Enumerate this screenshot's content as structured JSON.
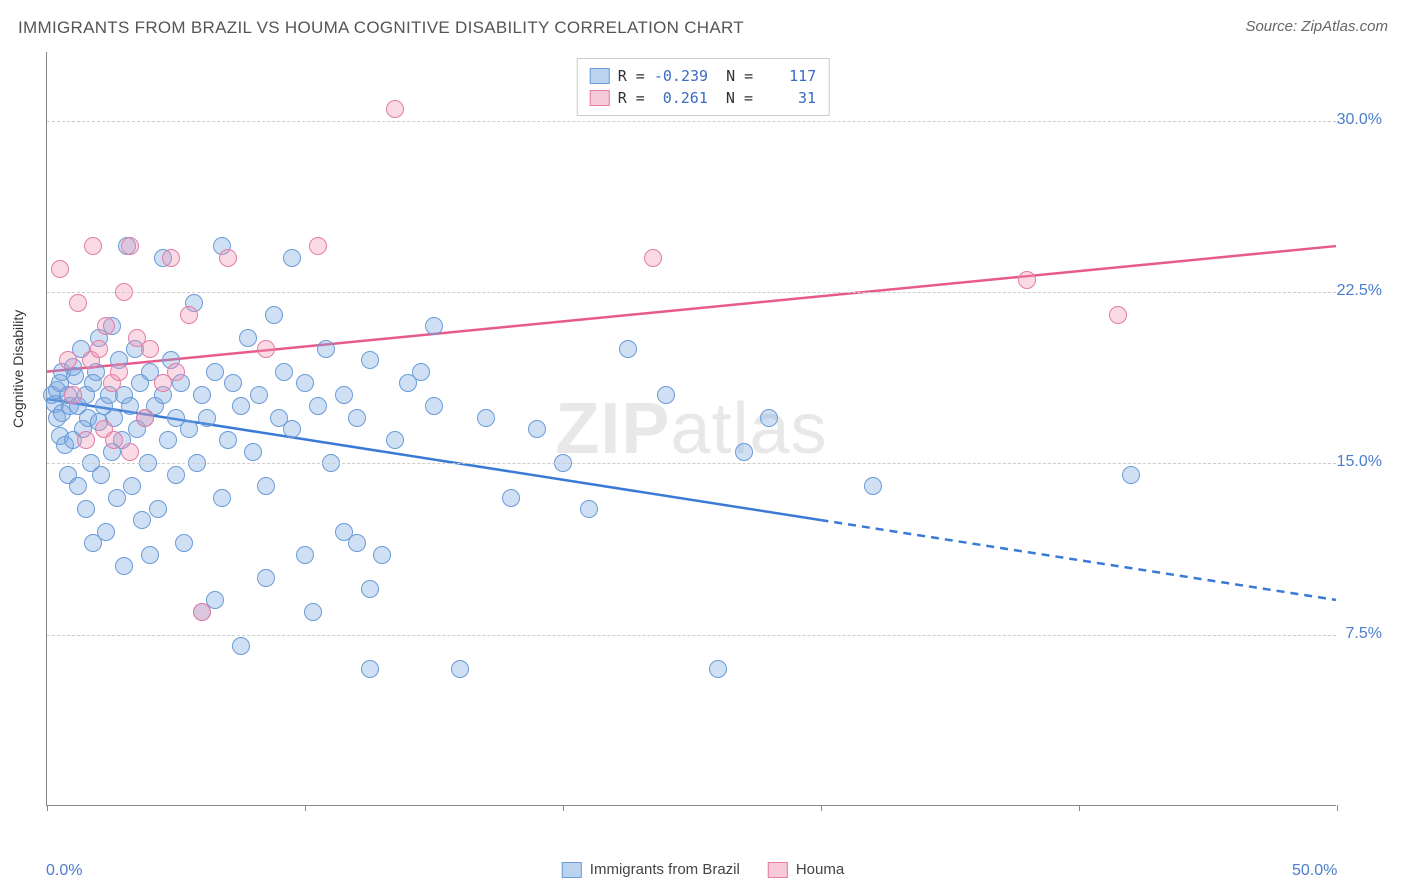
{
  "header": {
    "title": "IMMIGRANTS FROM BRAZIL VS HOUMA COGNITIVE DISABILITY CORRELATION CHART",
    "source": "Source: ZipAtlas.com"
  },
  "watermark": {
    "bold": "ZIP",
    "rest": "atlas"
  },
  "chart": {
    "type": "scatter",
    "ylabel": "Cognitive Disability",
    "xlim": [
      0.0,
      50.0
    ],
    "ylim": [
      0.0,
      33.0
    ],
    "background_color": "#ffffff",
    "grid_color": "#cccccc",
    "axis_color": "#888888",
    "label_color": "#4a7ecc",
    "grid_y": [
      7.5,
      15.0,
      22.5,
      30.0
    ],
    "y_tick_labels": [
      "7.5%",
      "15.0%",
      "22.5%",
      "30.0%"
    ],
    "x_tick_positions": [
      0,
      10,
      20,
      30,
      40,
      50
    ],
    "x_tick_labels": [
      "0.0%",
      "50.0%"
    ],
    "x_tick_label_positions": [
      0,
      50
    ],
    "point_radius": 9,
    "series": [
      {
        "name": "Immigrants from Brazil",
        "color_fill": "rgba(120,167,224,0.35)",
        "color_stroke": "#6b9bd8",
        "class": "pt-blue",
        "R": "-0.239",
        "N": "117",
        "reg_line": {
          "color": "#3a7ad6",
          "width": 2.5,
          "start": [
            0,
            17.8
          ],
          "solid_end": [
            30,
            12.5
          ],
          "dashed_end": [
            50,
            9.0
          ]
        },
        "points": [
          [
            0.2,
            18.0
          ],
          [
            0.3,
            17.6
          ],
          [
            0.4,
            18.2
          ],
          [
            0.4,
            17.0
          ],
          [
            0.5,
            18.5
          ],
          [
            0.5,
            16.2
          ],
          [
            0.6,
            19.0
          ],
          [
            0.6,
            17.2
          ],
          [
            0.7,
            15.8
          ],
          [
            0.8,
            18.0
          ],
          [
            0.8,
            14.5
          ],
          [
            0.9,
            17.5
          ],
          [
            1.0,
            16.0
          ],
          [
            1.0,
            19.2
          ],
          [
            1.1,
            18.8
          ],
          [
            1.2,
            14.0
          ],
          [
            1.2,
            17.5
          ],
          [
            1.3,
            20.0
          ],
          [
            1.4,
            16.5
          ],
          [
            1.5,
            18.0
          ],
          [
            1.5,
            13.0
          ],
          [
            1.6,
            17.0
          ],
          [
            1.7,
            15.0
          ],
          [
            1.8,
            18.5
          ],
          [
            1.8,
            11.5
          ],
          [
            1.9,
            19.0
          ],
          [
            2.0,
            16.8
          ],
          [
            2.0,
            20.5
          ],
          [
            2.1,
            14.5
          ],
          [
            2.2,
            17.5
          ],
          [
            2.3,
            12.0
          ],
          [
            2.4,
            18.0
          ],
          [
            2.5,
            15.5
          ],
          [
            2.5,
            21.0
          ],
          [
            2.6,
            17.0
          ],
          [
            2.7,
            13.5
          ],
          [
            2.8,
            19.5
          ],
          [
            2.9,
            16.0
          ],
          [
            3.0,
            18.0
          ],
          [
            3.0,
            10.5
          ],
          [
            3.1,
            24.5
          ],
          [
            3.2,
            17.5
          ],
          [
            3.3,
            14.0
          ],
          [
            3.4,
            20.0
          ],
          [
            3.5,
            16.5
          ],
          [
            3.6,
            18.5
          ],
          [
            3.7,
            12.5
          ],
          [
            3.8,
            17.0
          ],
          [
            3.9,
            15.0
          ],
          [
            4.0,
            19.0
          ],
          [
            4.0,
            11.0
          ],
          [
            4.2,
            17.5
          ],
          [
            4.3,
            13.0
          ],
          [
            4.5,
            18.0
          ],
          [
            4.5,
            24.0
          ],
          [
            4.7,
            16.0
          ],
          [
            4.8,
            19.5
          ],
          [
            5.0,
            14.5
          ],
          [
            5.0,
            17.0
          ],
          [
            5.2,
            18.5
          ],
          [
            5.3,
            11.5
          ],
          [
            5.5,
            16.5
          ],
          [
            5.7,
            22.0
          ],
          [
            5.8,
            15.0
          ],
          [
            6.0,
            18.0
          ],
          [
            6.0,
            8.5
          ],
          [
            6.2,
            17.0
          ],
          [
            6.5,
            19.0
          ],
          [
            6.5,
            9.0
          ],
          [
            6.8,
            13.5
          ],
          [
            6.8,
            24.5
          ],
          [
            7.0,
            16.0
          ],
          [
            7.2,
            18.5
          ],
          [
            7.5,
            17.5
          ],
          [
            7.5,
            7.0
          ],
          [
            7.8,
            20.5
          ],
          [
            8.0,
            15.5
          ],
          [
            8.2,
            18.0
          ],
          [
            8.5,
            14.0
          ],
          [
            8.5,
            10.0
          ],
          [
            8.8,
            21.5
          ],
          [
            9.0,
            17.0
          ],
          [
            9.2,
            19.0
          ],
          [
            9.5,
            16.5
          ],
          [
            9.5,
            24.0
          ],
          [
            10.0,
            18.5
          ],
          [
            10.0,
            11.0
          ],
          [
            10.3,
            8.5
          ],
          [
            10.5,
            17.5
          ],
          [
            10.8,
            20.0
          ],
          [
            11.0,
            15.0
          ],
          [
            11.5,
            18.0
          ],
          [
            11.5,
            12.0
          ],
          [
            12.0,
            17.0
          ],
          [
            12.0,
            11.5
          ],
          [
            12.5,
            9.5
          ],
          [
            12.5,
            19.5
          ],
          [
            12.5,
            6.0
          ],
          [
            13.0,
            11.0
          ],
          [
            13.5,
            16.0
          ],
          [
            14.0,
            18.5
          ],
          [
            14.5,
            19.0
          ],
          [
            15.0,
            17.5
          ],
          [
            15.0,
            21.0
          ],
          [
            16.0,
            6.0
          ],
          [
            17.0,
            17.0
          ],
          [
            18.0,
            13.5
          ],
          [
            19.0,
            16.5
          ],
          [
            20.0,
            15.0
          ],
          [
            21.0,
            13.0
          ],
          [
            22.5,
            20.0
          ],
          [
            24.0,
            18.0
          ],
          [
            26.0,
            6.0
          ],
          [
            27.0,
            15.5
          ],
          [
            28.0,
            17.0
          ],
          [
            32.0,
            14.0
          ],
          [
            42.0,
            14.5
          ]
        ]
      },
      {
        "name": "Houma",
        "color_fill": "rgba(240,150,180,0.35)",
        "color_stroke": "#e37da6",
        "class": "pt-pink",
        "R": "0.261",
        "N": "31",
        "reg_line": {
          "color": "#e85a8c",
          "width": 2.5,
          "start": [
            0,
            19.0
          ],
          "solid_end": [
            50,
            24.5
          ],
          "dashed_end": null
        },
        "points": [
          [
            0.5,
            23.5
          ],
          [
            0.8,
            19.5
          ],
          [
            1.0,
            18.0
          ],
          [
            1.2,
            22.0
          ],
          [
            1.5,
            16.0
          ],
          [
            1.7,
            19.5
          ],
          [
            1.8,
            24.5
          ],
          [
            2.0,
            20.0
          ],
          [
            2.2,
            16.5
          ],
          [
            2.3,
            21.0
          ],
          [
            2.5,
            18.5
          ],
          [
            2.6,
            16.0
          ],
          [
            2.8,
            19.0
          ],
          [
            3.0,
            22.5
          ],
          [
            3.2,
            15.5
          ],
          [
            3.2,
            24.5
          ],
          [
            3.5,
            20.5
          ],
          [
            3.8,
            17.0
          ],
          [
            4.0,
            20.0
          ],
          [
            4.5,
            18.5
          ],
          [
            4.8,
            24.0
          ],
          [
            5.0,
            19.0
          ],
          [
            5.5,
            21.5
          ],
          [
            6.0,
            8.5
          ],
          [
            7.0,
            24.0
          ],
          [
            8.5,
            20.0
          ],
          [
            10.5,
            24.5
          ],
          [
            13.5,
            30.5
          ],
          [
            23.5,
            24.0
          ],
          [
            38.0,
            23.0
          ],
          [
            41.5,
            21.5
          ]
        ]
      }
    ]
  },
  "legend_bottom": {
    "items": [
      {
        "label": "Immigrants from Brazil",
        "swatch": "sw-blue"
      },
      {
        "label": "Houma",
        "swatch": "sw-pink"
      }
    ]
  }
}
